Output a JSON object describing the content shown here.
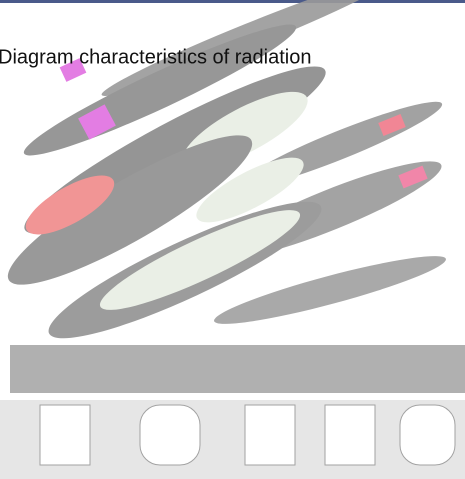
{
  "caption": "Diagram characteristics of radiation"
}
